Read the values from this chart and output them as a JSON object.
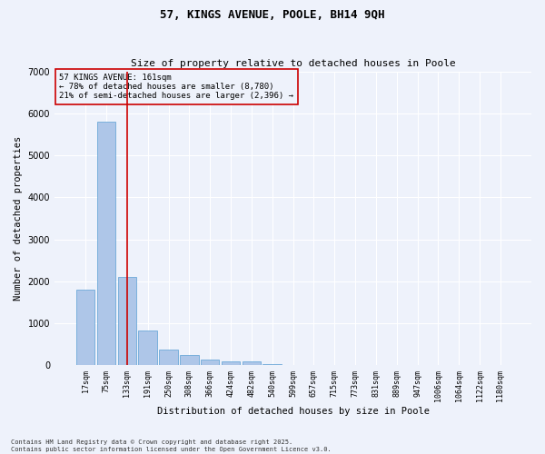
{
  "title": "57, KINGS AVENUE, POOLE, BH14 9QH",
  "subtitle": "Size of property relative to detached houses in Poole",
  "xlabel": "Distribution of detached houses by size in Poole",
  "ylabel": "Number of detached properties",
  "categories": [
    "17sqm",
    "75sqm",
    "133sqm",
    "191sqm",
    "250sqm",
    "308sqm",
    "366sqm",
    "424sqm",
    "482sqm",
    "540sqm",
    "599sqm",
    "657sqm",
    "715sqm",
    "773sqm",
    "831sqm",
    "889sqm",
    "947sqm",
    "1006sqm",
    "1064sqm",
    "1122sqm",
    "1180sqm"
  ],
  "values": [
    1800,
    5800,
    2100,
    830,
    380,
    230,
    130,
    80,
    80,
    30,
    0,
    0,
    0,
    0,
    0,
    0,
    0,
    0,
    0,
    0,
    0
  ],
  "bar_color": "#aec6e8",
  "bar_edgecolor": "#5a9fd4",
  "vline_x": 2,
  "vline_color": "#cc0000",
  "ylim": [
    0,
    7000
  ],
  "yticks": [
    0,
    1000,
    2000,
    3000,
    4000,
    5000,
    6000,
    7000
  ],
  "annotation_title": "57 KINGS AVENUE: 161sqm",
  "annotation_line1": "← 78% of detached houses are smaller (8,780)",
  "annotation_line2": "21% of semi-detached houses are larger (2,396) →",
  "annotation_box_color": "#cc0000",
  "background_color": "#eef2fb",
  "grid_color": "#ffffff",
  "footer1": "Contains HM Land Registry data © Crown copyright and database right 2025.",
  "footer2": "Contains public sector information licensed under the Open Government Licence v3.0."
}
